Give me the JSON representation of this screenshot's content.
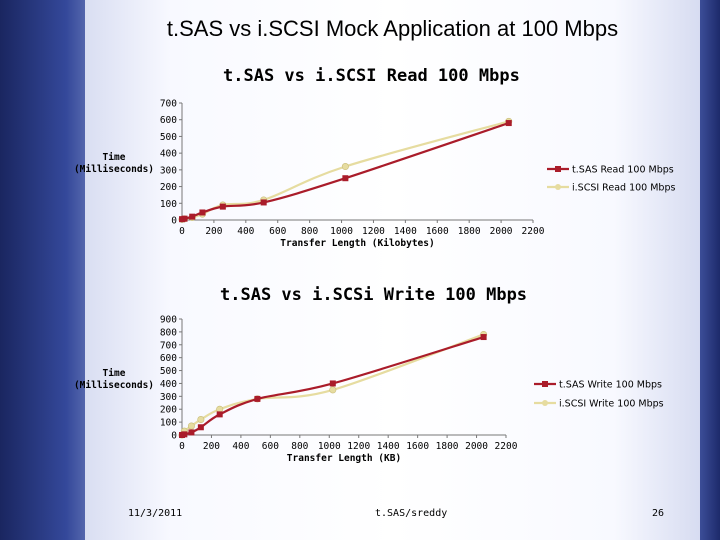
{
  "slide_title": "t.SAS vs i.SCSI Mock Application at 100 Mbps",
  "footer": {
    "date": "11/3/2011",
    "author": "t.SAS/sreddy",
    "page": "26"
  },
  "chart_data": [
    {
      "type": "line",
      "title": "t.SAS vs i.SCSI Read 100 Mbps",
      "xlabel": "Transfer Length (Kilobytes)",
      "ylabel_lines": [
        "Time",
        "(Milliseconds)"
      ],
      "xlim": [
        0,
        2200
      ],
      "ylim": [
        0,
        700
      ],
      "xticks": [
        0,
        200,
        400,
        600,
        800,
        1000,
        1200,
        1400,
        1600,
        1800,
        2000,
        2200
      ],
      "yticks": [
        0,
        100,
        200,
        300,
        400,
        500,
        600,
        700
      ],
      "legend_position": "right",
      "series": [
        {
          "name": "t.SAS Read 100 Mbps",
          "color": "#aa1c2a",
          "marker": "square",
          "x": [
            0,
            16,
            64,
            128,
            256,
            512,
            1024,
            2048
          ],
          "y": [
            5,
            8,
            20,
            45,
            80,
            105,
            250,
            580
          ]
        },
        {
          "name": "i.SCSI Read 100 Mbps",
          "color": "#e6dca0",
          "marker": "circle",
          "x": [
            0,
            16,
            64,
            128,
            256,
            512,
            1024,
            2048
          ],
          "y": [
            4,
            7,
            15,
            35,
            90,
            120,
            320,
            590
          ]
        }
      ]
    },
    {
      "type": "line",
      "title": "t.SAS vs i.SCSi Write 100 Mbps",
      "xlabel": "Transfer Length (KB)",
      "ylabel_lines": [
        "Time",
        "(Milliseconds)"
      ],
      "xlim": [
        0,
        2200
      ],
      "ylim": [
        0,
        900
      ],
      "xticks": [
        0,
        200,
        400,
        600,
        800,
        1000,
        1200,
        1400,
        1600,
        1800,
        2000,
        2200
      ],
      "yticks": [
        0,
        100,
        200,
        300,
        400,
        500,
        600,
        700,
        800,
        900
      ],
      "legend_position": "right",
      "series": [
        {
          "name": "t.SAS Write 100 Mbps",
          "color": "#aa1c2a",
          "marker": "square",
          "x": [
            0,
            16,
            64,
            128,
            256,
            512,
            1024,
            2048
          ],
          "y": [
            0,
            5,
            20,
            60,
            160,
            280,
            400,
            760
          ]
        },
        {
          "name": "i.SCSI Write 100 Mbps",
          "color": "#e6dca0",
          "marker": "circle",
          "x": [
            0,
            16,
            64,
            128,
            256,
            512,
            1024,
            2048
          ],
          "y": [
            0,
            30,
            70,
            120,
            200,
            280,
            350,
            780
          ]
        }
      ]
    }
  ]
}
